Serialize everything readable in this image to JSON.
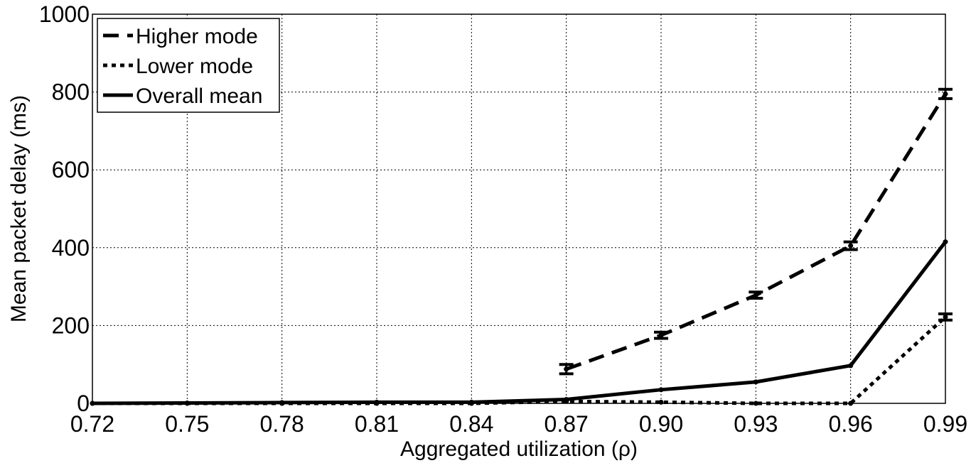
{
  "chart_data": {
    "type": "line",
    "xlabel": "Aggregated utilization (ρ)",
    "ylabel": "Mean packet delay (ms)",
    "x": [
      0.72,
      0.75,
      0.78,
      0.81,
      0.84,
      0.87,
      0.9,
      0.93,
      0.96,
      0.99
    ],
    "x_tick_labels": [
      "0.72",
      "0.75",
      "0.78",
      "0.81",
      "0.84",
      "0.87",
      "0.90",
      "0.93",
      "0.96",
      "0.99"
    ],
    "y_ticks": [
      0,
      200,
      400,
      600,
      800,
      1000
    ],
    "y_tick_labels": [
      "0",
      "200",
      "400",
      "600",
      "800",
      "1000"
    ],
    "xlim": [
      0.72,
      0.99
    ],
    "ylim": [
      0,
      1000
    ],
    "grid": true,
    "legend_position": "top-left",
    "series": [
      {
        "name": "Higher mode",
        "style": "dashed",
        "x": [
          0.87,
          0.9,
          0.93,
          0.96,
          0.99
        ],
        "values": [
          88,
          175,
          278,
          405,
          795
        ],
        "error": [
          12,
          8,
          8,
          10,
          12
        ]
      },
      {
        "name": "Lower mode",
        "style": "dotted",
        "x": [
          0.72,
          0.75,
          0.78,
          0.81,
          0.84,
          0.87,
          0.9,
          0.93,
          0.96,
          0.99
        ],
        "values": [
          0,
          0,
          0,
          0,
          0,
          5,
          3,
          0,
          0,
          222
        ],
        "error": [
          0,
          0,
          0,
          0,
          0,
          0,
          0,
          0,
          0,
          8
        ]
      },
      {
        "name": "Overall mean",
        "style": "solid",
        "x": [
          0.72,
          0.75,
          0.78,
          0.81,
          0.84,
          0.87,
          0.9,
          0.93,
          0.96,
          0.99
        ],
        "values": [
          0,
          1,
          2,
          3,
          3,
          10,
          35,
          55,
          97,
          415
        ],
        "error": [
          0,
          0,
          0,
          0,
          0,
          0,
          0,
          0,
          0,
          0
        ]
      }
    ]
  }
}
